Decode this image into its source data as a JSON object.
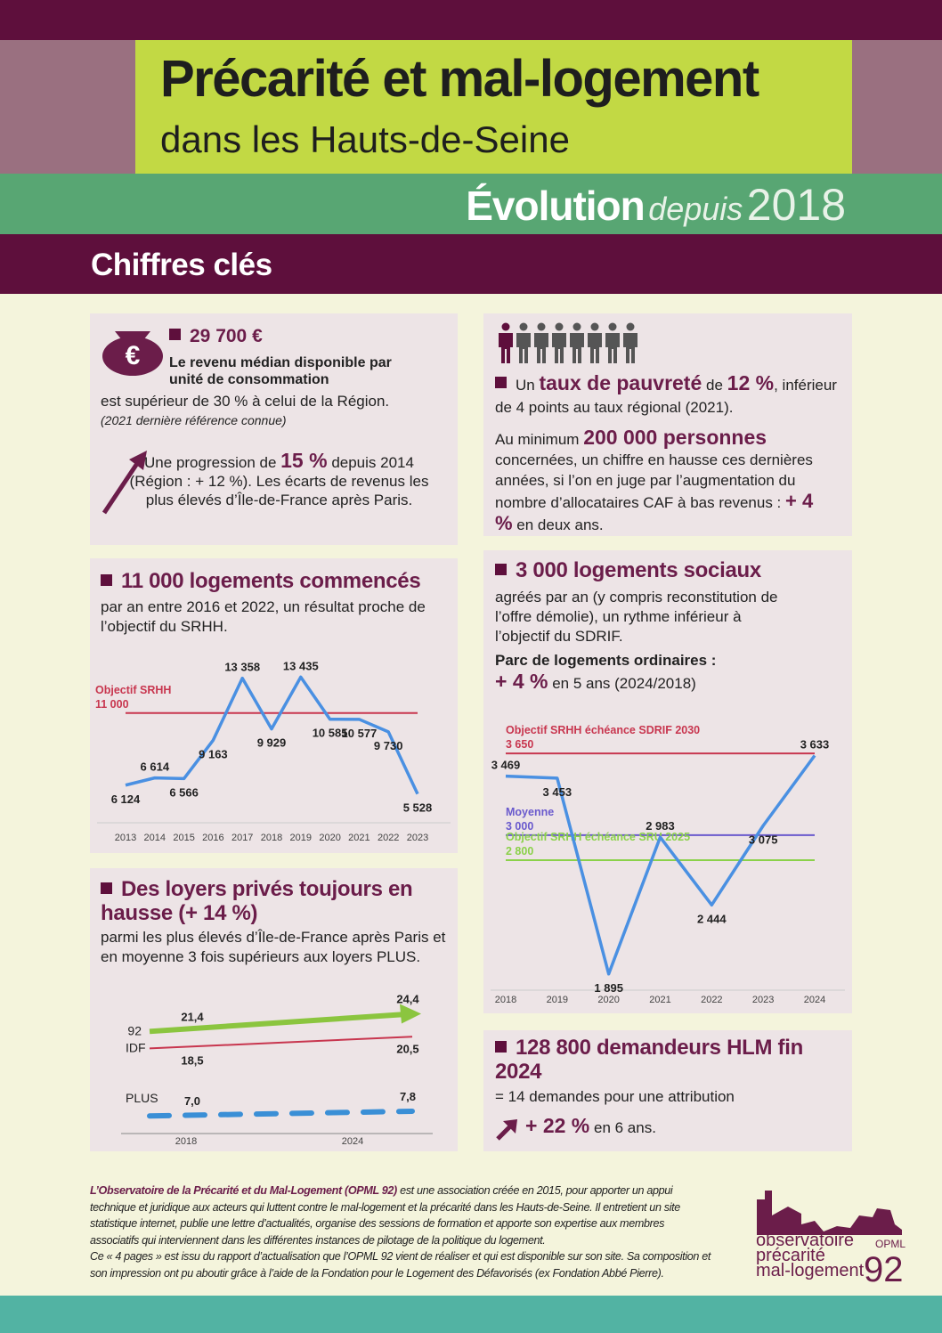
{
  "header": {
    "title": "Précarité et mal-logement",
    "subtitle": "dans les Hauts-de-Seine",
    "evolution": "Évolution",
    "since": "depuis",
    "year": "2018",
    "section": "Chiffres clés"
  },
  "income": {
    "icon": "€",
    "headline": "29 700 €",
    "definition": "Le revenu médian disponible par unité de consommation",
    "text": "est supérieur de 30 % à celui de la Région.",
    "note": "(2021 dernière référence connue)",
    "progress_pre": "Une progression de",
    "progress_value": "15 %",
    "progress_post": "depuis 2014 (Région : + 12 %). Les écarts de revenus les plus élevés d’Île-de-France après Paris."
  },
  "poverty": {
    "pre": "Un",
    "label": "taux de pauvreté",
    "mid": "de",
    "rate": "12 %",
    "post": ", inférieur de 4 points au taux régional (2021).",
    "min_pre": "Au minimum",
    "people": "200 000 personnes",
    "people_text": "concernées, un chiffre en hausse ces dernières années, si l’on en juge par l’augmentation du nombre d’allocataires CAF à bas revenus :",
    "growth": "+ 4 %",
    "growth_post": "en deux ans."
  },
  "housing": {
    "heading": "11 000 logements commencés",
    "text": "par an entre 2016 et 2022, un résultat proche de l’objectif du SRHH."
  },
  "social": {
    "heading": "3 000 logements sociaux",
    "text": "agréés par an (y compris reconstitution de l’offre démolie), un rythme inférieur à l’objectif du SDRIF.",
    "stock": "Parc de logements ordinaires :",
    "growth": "+ 4 %",
    "growth_post": "en 5 ans (2024/2018)"
  },
  "rents": {
    "heading": "Des loyers privés toujours en hausse (+ 14 %)",
    "text": "parmi les plus élevés d’Île-de-France après Paris et en moyenne 3 fois supérieurs aux loyers PLUS."
  },
  "demand": {
    "heading": "128 800 demandeurs HLM fin 2024",
    "text": "= 14 demandes pour une attribution",
    "growth": "+ 22 %",
    "growth_post": "en 6 ans."
  },
  "footer": {
    "org": "L’Observatoire de la Précarité et du Mal-Logement (OPML 92)",
    "text": "est une association créée en 2015, pour apporter un appui technique et juridique aux acteurs qui luttent contre le mal-logement et la précarité dans les Hauts-de-Seine. Il entretient un site statistique internet, publie une lettre d’actualités, organise des sessions de formation et apporte son expertise aux membres associatifs qui interviennent dans les différentes instances de pilotage de la politique du logement.",
    "text2": "Ce « 4 pages » est issu du rapport d’actualisation que l’OPML 92 vient de réaliser et qui est disponible sur son site. Sa composition et son impression ont pu aboutir grâce à l’aide de la Fondation pour le Logement des Défavorisés (ex Fondation Abbé Pierre)."
  },
  "logo": {
    "line1": "observatoire",
    "line2": "précarité",
    "line3": "mal-logement",
    "acronym": "OPML",
    "number": "92"
  },
  "chart_data": [
    {
      "type": "line",
      "categories": [
        "2013",
        "2014",
        "2015",
        "2016",
        "2017",
        "2018",
        "2019",
        "2020",
        "2021",
        "2022",
        "2023"
      ],
      "values": [
        6124,
        6614,
        6566,
        9163,
        13358,
        9929,
        13435,
        10585,
        10577,
        9730,
        5528
      ],
      "value_labels": [
        "6 124",
        "6 614",
        "6 566",
        "9 163",
        "13 358",
        "9 929",
        "13 435",
        "10 585",
        "10 577",
        "9 730",
        "5 528"
      ],
      "color": "#4a90e2",
      "ylim": [
        3700,
        14000
      ],
      "references": [
        {
          "name": "Objectif SRHH",
          "value": 11000,
          "value_label": "11 000",
          "color": "#c8364f"
        }
      ]
    },
    {
      "type": "line",
      "categories": [
        "2018",
        "2019",
        "2020",
        "2021",
        "2022",
        "2023",
        "2024"
      ],
      "values": [
        3469,
        3453,
        1895,
        2983,
        2444,
        3075,
        3633
      ],
      "value_labels": [
        "3 469",
        "3 453",
        "1 895",
        "2 983",
        "2 444",
        "3 075",
        "3 633"
      ],
      "color": "#4a90e2",
      "ylim": [
        1780,
        3750
      ],
      "references": [
        {
          "name": "Objectif SRHH échéance SDRIF 2030",
          "value": 3650,
          "value_label": "3 650",
          "color": "#c8364f"
        },
        {
          "name": "Moyenne",
          "value": 3000,
          "value_label": "3 000",
          "color": "#6a5acd"
        },
        {
          "name": "Objectif SRHH échéance SRU 2025",
          "value": 2800,
          "value_label": "2 800",
          "color": "#8bd14a"
        }
      ]
    },
    {
      "type": "slope",
      "categories": [
        "2018",
        "2024"
      ],
      "ylim": [
        4,
        26
      ],
      "series": [
        {
          "name": "92",
          "color": "#8bc53f",
          "values": [
            21.4,
            24.4
          ],
          "value_labels": [
            "21,4",
            "24,4"
          ]
        },
        {
          "name": "IDF",
          "color": "#c8364f",
          "values": [
            18.5,
            20.5
          ],
          "value_labels": [
            "18,5",
            "20,5"
          ]
        },
        {
          "name": "PLUS",
          "color": "#3a8fd6",
          "values": [
            7.0,
            7.8
          ],
          "value_labels": [
            "7,0",
            "7,8"
          ]
        }
      ]
    }
  ]
}
